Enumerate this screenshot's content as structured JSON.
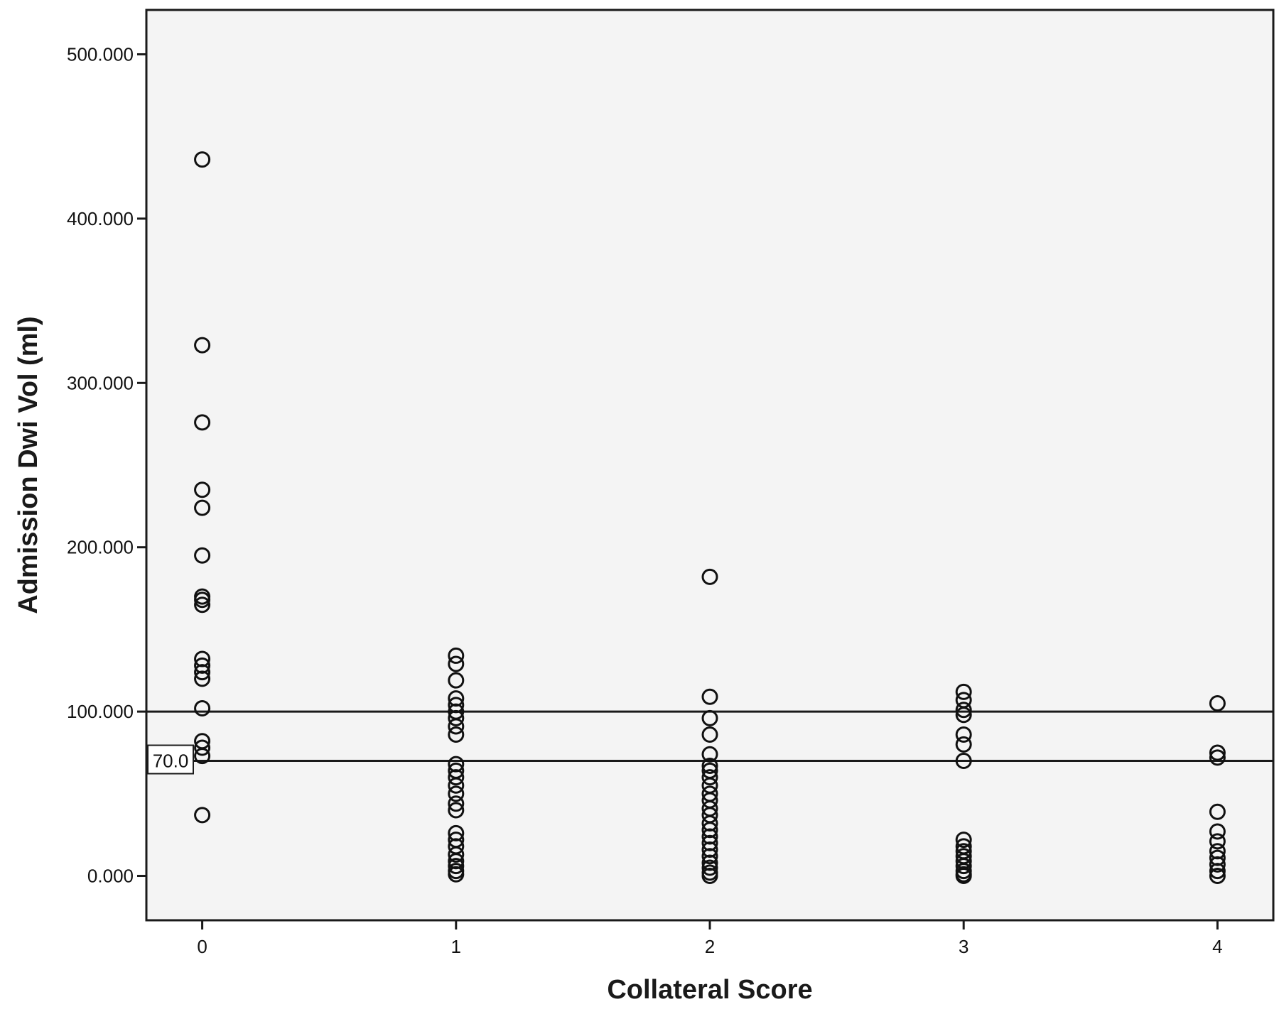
{
  "chart_data": {
    "type": "scatter",
    "xlabel": "Collateral Score",
    "ylabel": "Admission Dwi Vol (ml)",
    "x_ticks": [
      "0",
      "1",
      "2",
      "3",
      "4"
    ],
    "y_ticks": [
      "0.000",
      "100.000",
      "200.000",
      "300.000",
      "400.000",
      "500.000"
    ],
    "xlim": [
      -0.22,
      4.22
    ],
    "ylim": [
      -27,
      527
    ],
    "grid": false,
    "reference_lines": [
      {
        "y": 100,
        "label": ""
      },
      {
        "y": 70,
        "label": "70.0"
      }
    ],
    "series": [
      {
        "points": [
          [
            0,
            436
          ],
          [
            0,
            323
          ],
          [
            0,
            276
          ],
          [
            0,
            235
          ],
          [
            0,
            224
          ],
          [
            0,
            195
          ],
          [
            0,
            170
          ],
          [
            0,
            168
          ],
          [
            0,
            165
          ],
          [
            0,
            132
          ],
          [
            0,
            128
          ],
          [
            0,
            124
          ],
          [
            0,
            120
          ],
          [
            0,
            102
          ],
          [
            0,
            82
          ],
          [
            0,
            78
          ],
          [
            0,
            73
          ],
          [
            0,
            37
          ],
          [
            1,
            134
          ],
          [
            1,
            129
          ],
          [
            1,
            119
          ],
          [
            1,
            108
          ],
          [
            1,
            104
          ],
          [
            1,
            100
          ],
          [
            1,
            96
          ],
          [
            1,
            91
          ],
          [
            1,
            86
          ],
          [
            1,
            68
          ],
          [
            1,
            64
          ],
          [
            1,
            60
          ],
          [
            1,
            55
          ],
          [
            1,
            50
          ],
          [
            1,
            44
          ],
          [
            1,
            40
          ],
          [
            1,
            26
          ],
          [
            1,
            22
          ],
          [
            1,
            18
          ],
          [
            1,
            13
          ],
          [
            1,
            9
          ],
          [
            1,
            6
          ],
          [
            1,
            3
          ],
          [
            1,
            1
          ],
          [
            2,
            182
          ],
          [
            2,
            109
          ],
          [
            2,
            96
          ],
          [
            2,
            86
          ],
          [
            2,
            74
          ],
          [
            2,
            67
          ],
          [
            2,
            64
          ],
          [
            2,
            60
          ],
          [
            2,
            55
          ],
          [
            2,
            50
          ],
          [
            2,
            46
          ],
          [
            2,
            41
          ],
          [
            2,
            37
          ],
          [
            2,
            32
          ],
          [
            2,
            28
          ],
          [
            2,
            24
          ],
          [
            2,
            20
          ],
          [
            2,
            16
          ],
          [
            2,
            12
          ],
          [
            2,
            8
          ],
          [
            2,
            5
          ],
          [
            2,
            2
          ],
          [
            2,
            0
          ],
          [
            3,
            112
          ],
          [
            3,
            107
          ],
          [
            3,
            101
          ],
          [
            3,
            98
          ],
          [
            3,
            86
          ],
          [
            3,
            80
          ],
          [
            3,
            70
          ],
          [
            3,
            22
          ],
          [
            3,
            18
          ],
          [
            3,
            15
          ],
          [
            3,
            12
          ],
          [
            3,
            9
          ],
          [
            3,
            6
          ],
          [
            3,
            3
          ],
          [
            3,
            1
          ],
          [
            3,
            0
          ],
          [
            4,
            105
          ],
          [
            4,
            75
          ],
          [
            4,
            72
          ],
          [
            4,
            39
          ],
          [
            4,
            27
          ],
          [
            4,
            21
          ],
          [
            4,
            15
          ],
          [
            4,
            11
          ],
          [
            4,
            7
          ],
          [
            4,
            3
          ],
          [
            4,
            0
          ]
        ]
      }
    ]
  }
}
